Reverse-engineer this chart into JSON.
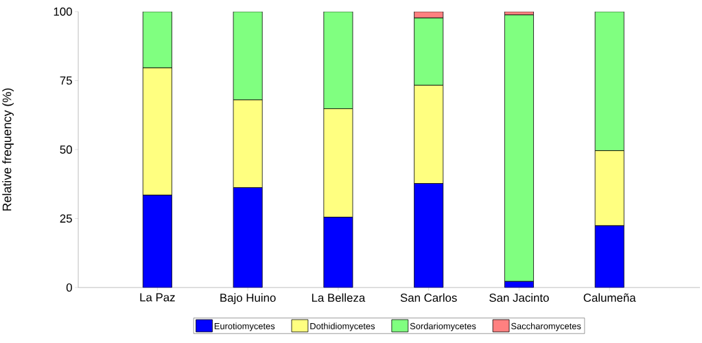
{
  "chart_data": {
    "type": "bar",
    "stacked": true,
    "ylabel": "Relative frequency (%)",
    "categories": [
      "La Paz",
      "Bajo Huino",
      "La Belleza",
      "San Carlos",
      "San Jacinto",
      "Calumeña"
    ],
    "series": [
      {
        "name": "Eurotiomycetes",
        "color": "#0000ff",
        "values": [
          33.5,
          36.2,
          25.5,
          37.7,
          2.2,
          22.4
        ]
      },
      {
        "name": "Dothidiomycetes",
        "color": "#ffff80",
        "values": [
          46.1,
          31.8,
          39.3,
          35.6,
          0,
          27.2
        ]
      },
      {
        "name": "Sordariomycetes",
        "color": "#80ff80",
        "values": [
          20.4,
          32.0,
          35.2,
          24.4,
          96.6,
          50.4
        ]
      },
      {
        "name": "Saccharomycetes",
        "color": "#ff8080",
        "values": [
          0,
          0,
          0,
          2.3,
          1.2,
          0
        ]
      }
    ],
    "ylim": [
      0,
      100
    ],
    "yticks": [
      0,
      25,
      50,
      75,
      100
    ],
    "grid": false,
    "legend": "bottom"
  }
}
